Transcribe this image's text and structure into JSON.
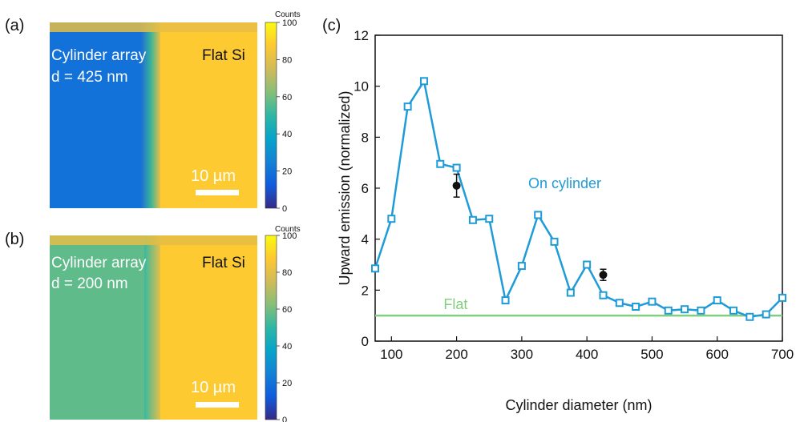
{
  "panels": {
    "a": {
      "label": "(a)",
      "region_left_text_line1": "Cylinder array",
      "region_left_text_line2": "d = 425 nm",
      "region_right_text": "Flat Si",
      "scale_bar_label": "10 µm",
      "colorbar_title": "Counts"
    },
    "b": {
      "label": "(b)",
      "region_left_text_line1": "Cylinder array",
      "region_left_text_line2": "d = 200 nm",
      "region_right_text": "Flat Si",
      "scale_bar_label": "10 µm",
      "colorbar_title": "Counts"
    },
    "c": {
      "label": "(c)"
    }
  },
  "colorbar": {
    "ticks": [
      "100",
      "80",
      "60",
      "40",
      "20",
      "0"
    ],
    "colormap": [
      "#352a87",
      "#0f5cdd",
      "#1481d6",
      "#06a4ca",
      "#2eb7a4",
      "#87bf77",
      "#d1bb59",
      "#fec832",
      "#f9fb0e"
    ]
  },
  "colors": {
    "series_on_cylinder": "#1f9bd7",
    "series_flat": "#7fcf7f",
    "measured": "#111111"
  },
  "chart_data": [
    {
      "type": "heatmap",
      "panel": "a",
      "left_region_level": 20,
      "right_region_level": 88,
      "colorbar_range": [
        0,
        100
      ]
    },
    {
      "type": "heatmap",
      "panel": "b",
      "left_region_level": 57,
      "right_region_level": 88,
      "colorbar_range": [
        0,
        100
      ]
    },
    {
      "type": "line",
      "panel": "c",
      "xlabel": "Cylinder diameter (nm)",
      "ylabel": "Upward emission (normalized)",
      "xlim": [
        75,
        700
      ],
      "ylim": [
        0,
        12
      ],
      "xticks": [
        100,
        200,
        300,
        400,
        500,
        600,
        700
      ],
      "yticks": [
        0,
        2,
        4,
        6,
        8,
        10,
        12
      ],
      "series": [
        {
          "name": "On cylinder",
          "x": [
            75,
            100,
            125,
            150,
            175,
            200,
            225,
            250,
            275,
            300,
            325,
            350,
            375,
            400,
            425,
            450,
            475,
            500,
            525,
            550,
            575,
            600,
            625,
            650,
            675,
            700
          ],
          "y": [
            2.85,
            4.8,
            9.2,
            10.2,
            6.95,
            6.8,
            4.75,
            4.8,
            1.6,
            2.95,
            4.95,
            3.9,
            1.9,
            3.0,
            1.8,
            1.5,
            1.35,
            1.55,
            1.2,
            1.25,
            1.2,
            1.6,
            1.2,
            0.95,
            1.05,
            1.7
          ]
        },
        {
          "name": "Flat",
          "x": [
            75,
            700
          ],
          "y": [
            1.0,
            1.0
          ]
        }
      ],
      "measured_points": {
        "x": [
          200,
          425
        ],
        "y": [
          6.1,
          2.6
        ],
        "error": [
          0.45,
          0.22
        ]
      },
      "grid": false
    }
  ]
}
